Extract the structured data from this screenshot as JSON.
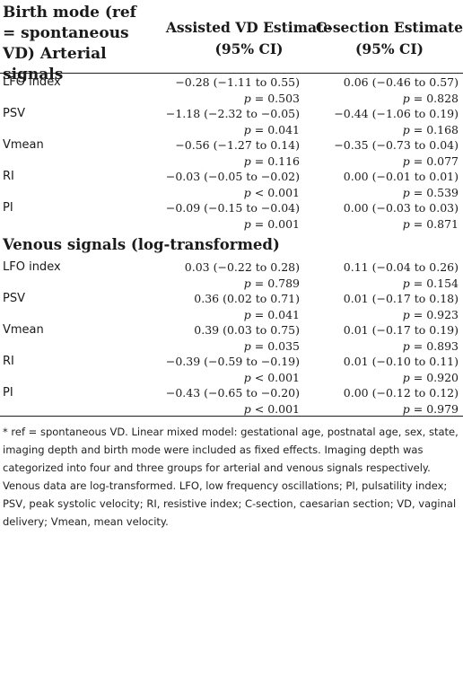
{
  "header": {
    "col1": "Birth mode (ref = spontaneous VD) Arterial signals",
    "col2": "Assisted VD Estimate (95% CI)",
    "col3": "C-section Estimate (95% CI)"
  },
  "arterial": [
    {
      "label": "LFO index",
      "a_est": "−0.28 (−1.11 to 0.55)",
      "a_p": "= 0.503",
      "c_est": "0.06 (−0.46 to 0.57)",
      "c_p": "= 0.828"
    },
    {
      "label": "PSV",
      "a_est": "−1.18 (−2.32 to −0.05)",
      "a_p": "= 0.041",
      "c_est": "−0.44 (−1.06 to 0.19)",
      "c_p": "= 0.168"
    },
    {
      "label": "Vmean",
      "a_est": "−0.56 (−1.27 to 0.14)",
      "a_p": "= 0.116",
      "c_est": "−0.35 (−0.73 to 0.04)",
      "c_p": "= 0.077"
    },
    {
      "label": "RI",
      "a_est": "−0.03 (−0.05 to −0.02)",
      "a_p": "< 0.001",
      "c_est": "0.00 (−0.01 to 0.01)",
      "c_p": "= 0.539"
    },
    {
      "label": "PI",
      "a_est": "−0.09 (−0.15 to −0.04)",
      "a_p": "= 0.001",
      "c_est": "0.00 (−0.03 to 0.03)",
      "c_p": "= 0.871"
    }
  ],
  "venous_title": "Venous signals (log-transformed)",
  "venous": [
    {
      "label": "LFO index",
      "a_est": "0.03 (−0.22 to 0.28)",
      "a_p": "= 0.789",
      "c_est": "0.11 (−0.04 to 0.26)",
      "c_p": "= 0.154"
    },
    {
      "label": "PSV",
      "a_est": "0.36 (0.02 to 0.71)",
      "a_p": "= 0.041",
      "c_est": "0.01 (−0.17 to 0.18)",
      "c_p": "= 0.923"
    },
    {
      "label": "Vmean",
      "a_est": "0.39 (0.03 to 0.75)",
      "a_p": "= 0.035",
      "c_est": "0.01 (−0.17 to 0.19)",
      "c_p": "= 0.893"
    },
    {
      "label": "RI",
      "a_est": "−0.39 (−0.59 to −0.19)",
      "a_p": "< 0.001",
      "c_est": "0.01 (−0.10 to 0.11)",
      "c_p": "= 0.920"
    },
    {
      "label": "PI",
      "a_est": "−0.43 (−0.65 to −0.20)",
      "a_p": "< 0.001",
      "c_est": "0.00 (−0.12 to 0.12)",
      "c_p": "= 0.979"
    }
  ],
  "p_symbol": "p",
  "footnote": "* ref = spontaneous VD. Linear mixed model: gestational age, postnatal age, sex, state, imaging depth and birth mode were included as fixed effects. Imaging depth was categorized into four and three groups for arterial and venous signals respectively. Venous data are log-transformed. LFO, low frequency oscillations; PI, pulsatility index; PSV, peak systolic velocity; RI, resistive index; C-section, caesarian section; VD, vaginal delivery; Vmean, mean velocity."
}
